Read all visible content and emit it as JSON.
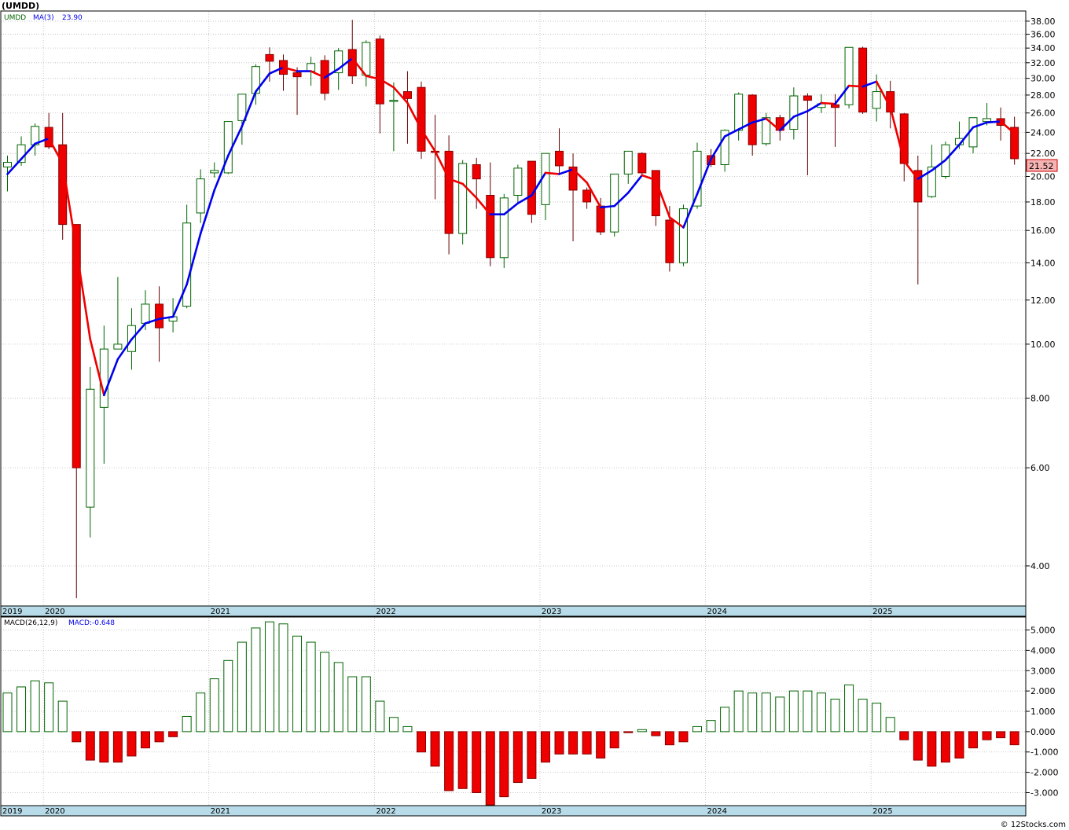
{
  "title": "(UMDD)",
  "watermark": "© 12Stocks.com",
  "price_panel": {
    "symbol_label": "UMDD",
    "ma_label": "MA(3)",
    "ma_value": "23.90",
    "last_price_label": "21.52"
  },
  "macd_panel": {
    "label": "MACD(26,12,9)",
    "value_label": "MACD:-0.648"
  },
  "colors": {
    "up_candle": "#006400",
    "down_candle": "#ee0000",
    "ma_up": "#0000ee",
    "ma_down": "#ee0000",
    "grid": "#b8b8b8",
    "axis_band": "#b7dbe8",
    "last_price_bg": "#f6b3b3"
  },
  "chart_data": [
    {
      "type": "candlestick",
      "title": "(UMDD)",
      "scale": "log",
      "ylim": [
        3.4,
        39.5
      ],
      "y_ticks": [
        "38.00",
        "36.00",
        "34.00",
        "32.00",
        "30.00",
        "28.00",
        "26.00",
        "24.00",
        "22.00",
        "20.00",
        "18.00",
        "16.00",
        "14.00",
        "12.00",
        "10.00",
        "8.00",
        "6.00",
        "4.00"
      ],
      "x_labels": [
        "2019",
        "2020",
        "2021",
        "2022",
        "2023",
        "2024",
        "2025"
      ],
      "series": [
        {
          "name": "UMDD",
          "columns": [
            "open",
            "high",
            "low",
            "close"
          ],
          "values": [
            [
              20.8,
              21.8,
              18.8,
              21.2
            ],
            [
              21.2,
              23.6,
              20.9,
              22.8
            ],
            [
              22.8,
              24.9,
              21.8,
              24.6
            ],
            [
              24.5,
              26.0,
              22.4,
              22.6
            ],
            [
              22.8,
              26.0,
              15.4,
              16.4
            ],
            [
              16.4,
              16.4,
              3.5,
              6.0
            ],
            [
              5.1,
              9.1,
              4.5,
              8.3
            ],
            [
              7.7,
              10.8,
              6.1,
              9.8
            ],
            [
              9.8,
              13.2,
              9.8,
              10.0
            ],
            [
              9.7,
              11.6,
              9.0,
              10.8
            ],
            [
              10.9,
              12.5,
              10.6,
              11.8
            ],
            [
              11.8,
              12.7,
              9.3,
              10.7
            ],
            [
              11.0,
              12.1,
              10.5,
              11.2
            ],
            [
              11.7,
              17.8,
              11.6,
              16.5
            ],
            [
              17.2,
              20.6,
              16.5,
              19.8
            ],
            [
              20.3,
              21.2,
              19.9,
              20.5
            ],
            [
              20.3,
              23.7,
              20.2,
              25.1
            ],
            [
              25.2,
              26.6,
              22.8,
              28.1
            ],
            [
              28.2,
              31.8,
              26.9,
              31.5
            ],
            [
              33.1,
              34.1,
              29.6,
              32.2
            ],
            [
              32.3,
              33.1,
              28.5,
              30.5
            ],
            [
              30.7,
              31.4,
              25.8,
              30.2
            ],
            [
              30.9,
              32.8,
              29.1,
              31.9
            ],
            [
              32.3,
              33.0,
              27.4,
              28.2
            ],
            [
              30.7,
              34.0,
              28.6,
              33.6
            ],
            [
              33.8,
              38.2,
              29.3,
              30.3
            ],
            [
              30.4,
              35.1,
              29.0,
              34.8
            ],
            [
              35.3,
              35.8,
              23.9,
              27.0
            ],
            [
              27.4,
              29.5,
              22.2,
              27.4
            ],
            [
              28.4,
              30.9,
              22.9,
              27.6
            ],
            [
              28.9,
              29.6,
              21.5,
              22.2
            ],
            [
              22.2,
              25.8,
              18.2,
              22.1
            ],
            [
              22.2,
              23.7,
              14.5,
              15.8
            ],
            [
              15.8,
              21.4,
              15.1,
              21.1
            ],
            [
              21.0,
              21.6,
              17.5,
              19.8
            ],
            [
              18.5,
              21.2,
              13.8,
              14.3
            ],
            [
              14.3,
              18.6,
              13.7,
              18.3
            ],
            [
              18.5,
              21.0,
              17.9,
              20.7
            ],
            [
              21.3,
              21.3,
              16.5,
              17.1
            ],
            [
              17.8,
              21.9,
              16.7,
              22.0
            ],
            [
              22.2,
              24.4,
              20.2,
              20.9
            ],
            [
              20.8,
              22.0,
              15.3,
              18.9
            ],
            [
              18.9,
              19.1,
              17.5,
              18.0
            ],
            [
              17.7,
              18.3,
              15.7,
              15.9
            ],
            [
              15.9,
              20.1,
              15.6,
              20.2
            ],
            [
              20.2,
              22.2,
              19.4,
              22.2
            ],
            [
              22.0,
              22.1,
              20.0,
              20.3
            ],
            [
              20.5,
              20.5,
              16.3,
              17.0
            ],
            [
              16.7,
              17.7,
              13.5,
              14.0
            ],
            [
              14.0,
              17.8,
              13.8,
              17.5
            ],
            [
              17.7,
              23.0,
              17.5,
              22.2
            ],
            [
              21.8,
              22.4,
              20.8,
              21.0
            ],
            [
              21.0,
              24.3,
              20.4,
              24.2
            ],
            [
              24.2,
              28.3,
              23.2,
              28.1
            ],
            [
              28.0,
              28.1,
              21.8,
              22.8
            ],
            [
              22.9,
              26.0,
              22.7,
              25.5
            ],
            [
              25.5,
              25.8,
              23.2,
              24.2
            ],
            [
              24.3,
              28.9,
              23.3,
              27.9
            ],
            [
              27.9,
              28.2,
              20.1,
              27.4
            ],
            [
              26.6,
              28.1,
              26.0,
              27.0
            ],
            [
              26.9,
              28.1,
              22.6,
              26.6
            ],
            [
              26.9,
              34.0,
              26.5,
              34.1
            ],
            [
              34.0,
              34.2,
              25.9,
              26.1
            ],
            [
              26.5,
              30.5,
              25.1,
              28.4
            ],
            [
              28.4,
              29.7,
              24.4,
              26.1
            ],
            [
              25.9,
              26.0,
              19.6,
              21.1
            ],
            [
              20.5,
              21.8,
              12.8,
              18.0
            ],
            [
              18.4,
              22.8,
              18.3,
              20.8
            ],
            [
              20.0,
              23.1,
              19.8,
              22.8
            ],
            [
              22.8,
              25.1,
              22.4,
              23.4
            ],
            [
              22.6,
              25.3,
              22.0,
              25.5
            ],
            [
              25.1,
              27.1,
              24.7,
              25.4
            ],
            [
              25.4,
              26.6,
              23.2,
              24.7
            ],
            [
              24.5,
              25.6,
              21.0,
              21.52
            ]
          ]
        },
        {
          "name": "MA(3)",
          "values": [
            20.2,
            21.5,
            22.9,
            23.4,
            21.1,
            14.8,
            10.2,
            8.1,
            9.4,
            10.2,
            10.9,
            11.1,
            11.2,
            12.8,
            15.8,
            18.9,
            21.8,
            24.6,
            28.4,
            30.6,
            31.4,
            30.9,
            30.9,
            30.1,
            31.2,
            32.6,
            30.3,
            29.9,
            28.9,
            27.1,
            24.3,
            22.2,
            19.8,
            19.4,
            18.3,
            17.1,
            17.1,
            17.9,
            18.5,
            20.3,
            20.2,
            20.6,
            19.5,
            17.6,
            17.7,
            18.7,
            20.1,
            19.7,
            16.9,
            16.2,
            18.6,
            21.5,
            23.6,
            24.3,
            25.0,
            25.4,
            24.2,
            25.6,
            26.2,
            27.1,
            27.0,
            29.1,
            29.0,
            29.6,
            26.6,
            21.3,
            19.8,
            20.5,
            21.4,
            22.8,
            24.5,
            25.0,
            25.1,
            23.9
          ]
        }
      ]
    },
    {
      "type": "bar",
      "title": "MACD(26,12,9)",
      "ylim": [
        -3.6,
        5.6
      ],
      "y_ticks": [
        "5.000",
        "4.000",
        "3.000",
        "2.000",
        "1.000",
        "0.000",
        "-1.000",
        "-2.000",
        "-3.000"
      ],
      "x_labels": [
        "2019",
        "2020",
        "2021",
        "2022",
        "2023",
        "2024",
        "2025"
      ],
      "series": [
        {
          "name": "MACD",
          "values": [
            1.9,
            2.2,
            2.5,
            2.4,
            1.5,
            -0.5,
            -1.4,
            -1.5,
            -1.5,
            -1.2,
            -0.8,
            -0.5,
            -0.25,
            0.75,
            1.9,
            2.6,
            3.5,
            4.4,
            5.1,
            5.4,
            5.3,
            4.7,
            4.4,
            3.9,
            3.4,
            2.7,
            2.7,
            1.5,
            0.7,
            0.25,
            -1.0,
            -1.7,
            -2.9,
            -2.8,
            -3.0,
            -3.6,
            -3.2,
            -2.5,
            -2.3,
            -1.5,
            -1.1,
            -1.1,
            -1.1,
            -1.3,
            -0.8,
            -0.05,
            0.1,
            -0.2,
            -0.65,
            -0.5,
            0.25,
            0.55,
            1.2,
            2.0,
            1.9,
            1.9,
            1.7,
            2.0,
            2.0,
            1.9,
            1.6,
            2.3,
            1.6,
            1.4,
            0.7,
            -0.4,
            -1.4,
            -1.7,
            -1.5,
            -1.3,
            -0.8,
            -0.4,
            -0.3,
            -0.648
          ]
        }
      ]
    }
  ]
}
